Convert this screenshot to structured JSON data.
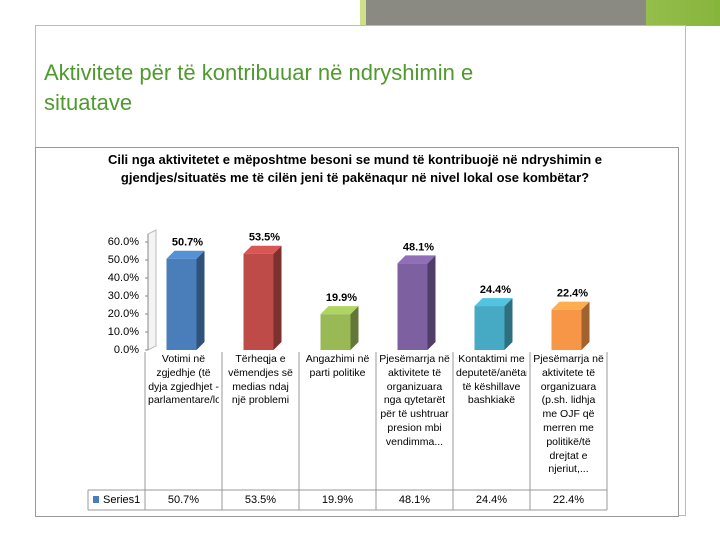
{
  "slide_title": "Aktivitete për të kontribuuar në ndryshimin e situatave",
  "chart_data": {
    "type": "bar3d",
    "title": "Cili nga aktivitetet e mëposhtme besoni se mund të kontribuojë në ndryshimin e gjendjes/situatës me të cilën jeni të pakënaqur në nivel lokal ose kombëtar?",
    "categories": [
      "Votimi në zgjedhje (të dyja zgjedhjet - parlamentare/lokale)",
      "Tërheqja e vëmendjes së medias ndaj një problemi",
      "Angazhimi në parti politike",
      "Pjesëmarrja në aktivitete të organizuara nga qytetarët për të ushtruar presion mbi vendimma...",
      "Kontaktimi me deputetë/anëtarë të këshillave bashkiakë",
      "Pjesëmarrja në aktivitete të organizuara (p.sh. lidhja me OJF që merren me politikë/të drejtat e njeriut,..."
    ],
    "series": [
      {
        "name": "Series1",
        "color": "#4a7ebb",
        "values": [
          50.7,
          53.5,
          19.9,
          48.1,
          24.4,
          22.4
        ],
        "value_labels": [
          "50.7%",
          "53.5%",
          "19.9%",
          "48.1%",
          "24.4%",
          "22.4%"
        ]
      }
    ],
    "colors": [
      "#4a7ebb",
      "#be4b48",
      "#98b954",
      "#7d60a0",
      "#46aac5",
      "#f79646"
    ],
    "ylim": [
      0,
      60
    ],
    "yticks": [
      {
        "value": 0,
        "label": "0.0%"
      },
      {
        "value": 10,
        "label": "10.0%"
      },
      {
        "value": 20,
        "label": "20.0%"
      },
      {
        "value": 30,
        "label": "30.0%"
      },
      {
        "value": 40,
        "label": "40.0%"
      },
      {
        "value": 50,
        "label": "50.0%"
      },
      {
        "value": 60,
        "label": "60.0%"
      }
    ],
    "data_table": true
  }
}
